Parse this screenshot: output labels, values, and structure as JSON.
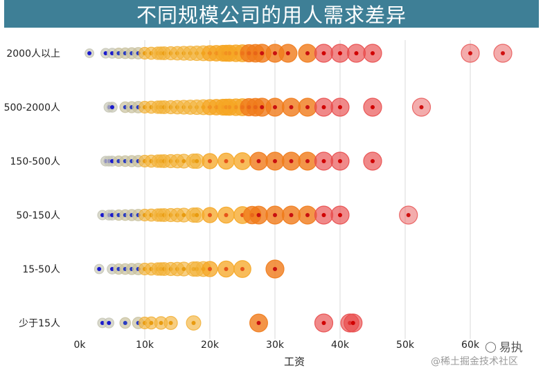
{
  "chart_data": {
    "type": "scatter",
    "title": "不同规模公司的用人需求差异",
    "xlabel": "工资",
    "ylabel": "",
    "xlim": [
      0,
      65000
    ],
    "x_ticks": [
      {
        "value": 0,
        "label": "0k"
      },
      {
        "value": 10000,
        "label": "10k"
      },
      {
        "value": 20000,
        "label": "20k"
      },
      {
        "value": 30000,
        "label": "30k"
      },
      {
        "value": 40000,
        "label": "40k"
      },
      {
        "value": 50000,
        "label": "50k"
      },
      {
        "value": 60000,
        "label": "60k"
      }
    ],
    "grid": "vertical",
    "categories": [
      "2000人以上",
      "500-2000人",
      "150-500人",
      "50-150人",
      "15-50人",
      "少于15人"
    ],
    "points": [
      [
        1500,
        4000,
        5000,
        6000,
        7000,
        8000,
        9000,
        10000,
        11000,
        12000,
        12500,
        13000,
        14000,
        15000,
        16000,
        17000,
        18000,
        19000,
        20000,
        21000,
        22000,
        22500,
        23000,
        24000,
        25000,
        26000,
        27000,
        28000,
        30000,
        32000,
        35000,
        37500,
        40000,
        42500,
        45000,
        60000,
        65000
      ],
      [
        4500,
        5000,
        7000,
        8000,
        9000,
        10000,
        11000,
        12000,
        12500,
        13000,
        14000,
        15000,
        16000,
        17000,
        18000,
        19000,
        20000,
        21000,
        22000,
        22500,
        23000,
        24000,
        25000,
        26000,
        27000,
        28000,
        30000,
        32500,
        35000,
        37500,
        40000,
        45000,
        52500
      ],
      [
        4000,
        4500,
        5000,
        6000,
        7000,
        8000,
        9000,
        10000,
        11000,
        12000,
        12500,
        13000,
        14000,
        15000,
        16000,
        17500,
        18000,
        20000,
        22500,
        25000,
        27500,
        30000,
        32500,
        35000,
        37500,
        40000,
        45000
      ],
      [
        3500,
        4500,
        5000,
        6000,
        7000,
        8000,
        9000,
        10000,
        11000,
        12000,
        12500,
        13000,
        14000,
        15000,
        16000,
        17500,
        18000,
        20000,
        22500,
        25000,
        26500,
        27500,
        30000,
        32500,
        35000,
        37500,
        40000,
        50500
      ],
      [
        3000,
        5000,
        6000,
        7000,
        8000,
        9000,
        10000,
        11000,
        12000,
        12500,
        13000,
        14000,
        15000,
        16000,
        17500,
        18000,
        19000,
        20000,
        22500,
        25000,
        30000
      ],
      [
        3500,
        4500,
        7000,
        9000,
        10000,
        11000,
        12500,
        14000,
        17500,
        27500,
        37500,
        41500,
        42000
      ]
    ]
  },
  "watermark": {
    "brand_icon": "wechat-icon",
    "brand": "易执",
    "site": "@稀土掘金技术社区"
  }
}
